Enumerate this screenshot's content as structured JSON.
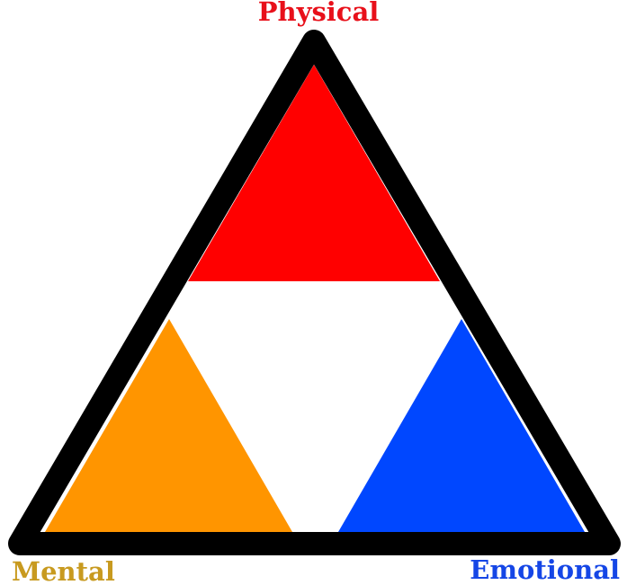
{
  "diagram": {
    "labels": {
      "top": "Physical",
      "bottom_left": "Mental",
      "bottom_right": "Emotional"
    },
    "colors": {
      "physical": "#ff0000",
      "mental": "#ff9500",
      "emotional": "#0047ff",
      "outline": "#000000",
      "center": "#ffffff",
      "mental_label": "#c89a1f",
      "emotional_label": "#1546e6",
      "physical_label": "#e8101a"
    }
  }
}
